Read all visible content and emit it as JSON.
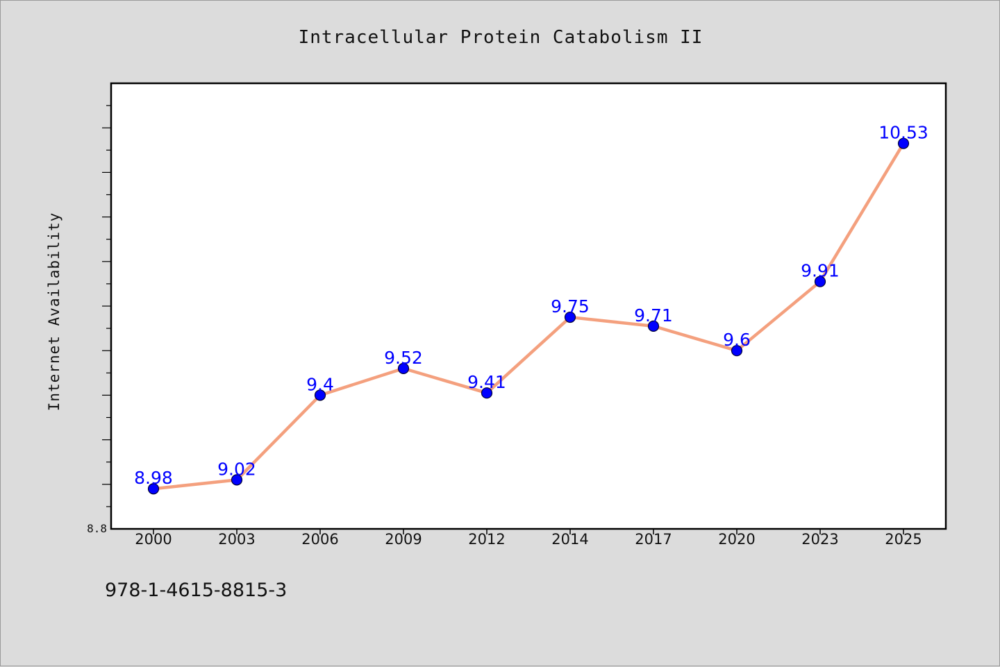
{
  "chart_data": {
    "type": "line",
    "title": "Intracellular Protein Catabolism II",
    "xlabel": "",
    "ylabel": "Internet Availability",
    "categories": [
      "2000",
      "2003",
      "2006",
      "2009",
      "2012",
      "2014",
      "2017",
      "2020",
      "2023",
      "2025"
    ],
    "series": [
      {
        "values": [
          8.98,
          9.02,
          9.4,
          9.52,
          9.41,
          9.75,
          9.71,
          9.6,
          9.91,
          10.53
        ],
        "labels": [
          "8.98",
          "9.02",
          "9.4",
          "9.52",
          "9.41",
          "9.75",
          "9.71",
          "9.6",
          "9.91",
          "10.53"
        ]
      }
    ],
    "ylim": [
      8.8,
      10.8
    ],
    "y_tick_labels": [
      {
        "value": 8.8,
        "label": "8.8"
      }
    ],
    "grid": false,
    "legend": "none",
    "colors": {
      "line": "#f4a07e",
      "marker": "#0000ff",
      "marker_edge": "#000033",
      "data_label": "#0000ff",
      "plot_bg": "#ffffff",
      "page_bg": "#dcdcdc"
    }
  },
  "footnote": "978-1-4615-8815-3"
}
